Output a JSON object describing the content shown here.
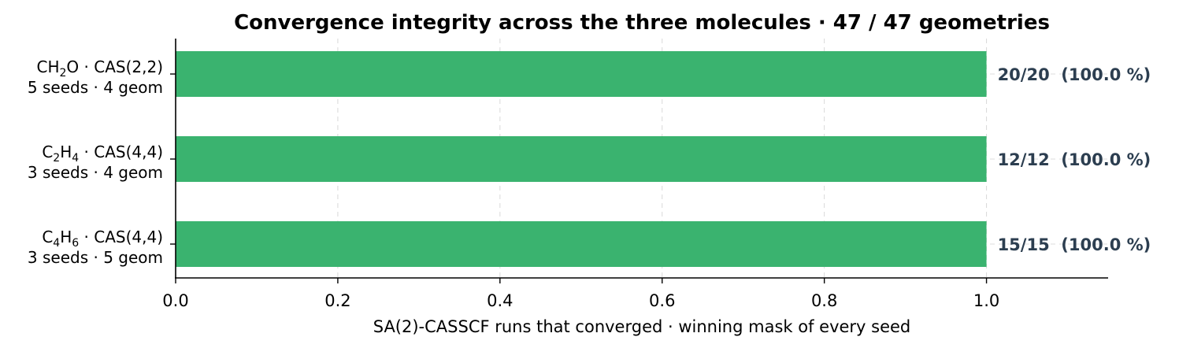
{
  "chart_data": {
    "type": "bar",
    "orientation": "horizontal",
    "title": "Convergence integrity across the three molecules · 47 / 47 geometries",
    "xlabel": "SA(2)-CASSCF runs that converged · winning mask of every seed",
    "ylabel": "",
    "xlim": [
      0,
      1.15
    ],
    "xticks": [
      "0.0",
      "0.2",
      "0.4",
      "0.6",
      "0.8",
      "1.0"
    ],
    "grid": "vertical dashed",
    "bar_color": "#3ab36f",
    "label_color": "#2c3e50",
    "categories": [
      {
        "line1_pre": "CH",
        "line1_sub1": "2",
        "line1_mid": "O",
        "line1_sub2": "",
        "line1_post": " · CAS(2,2)",
        "line2": "5 seeds · 4 geom"
      },
      {
        "line1_pre": "C",
        "line1_sub1": "2",
        "line1_mid": "H",
        "line1_sub2": "4",
        "line1_post": " · CAS(4,4)",
        "line2": "3 seeds · 4 geom"
      },
      {
        "line1_pre": "C",
        "line1_sub1": "4",
        "line1_mid": "H",
        "line1_sub2": "6",
        "line1_post": " · CAS(4,4)",
        "line2": "3 seeds · 5 geom"
      }
    ],
    "values": [
      1.0,
      1.0,
      1.0
    ],
    "data_labels": [
      "20/20  (100.0 %)",
      "12/12  (100.0 %)",
      "15/15  (100.0 %)"
    ]
  }
}
